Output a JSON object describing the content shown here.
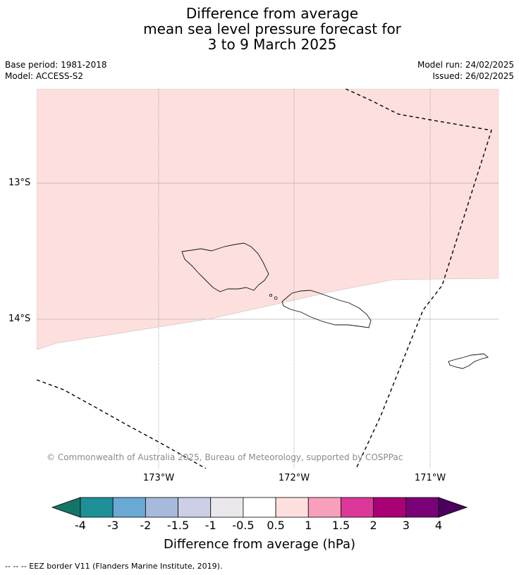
{
  "title": {
    "line1": "Difference from average",
    "line2": "mean sea level pressure forecast for",
    "line3": "3 to 9 March 2025"
  },
  "meta": {
    "base_period": "Base period: 1981-2018",
    "model": "Model: ACCESS-S2",
    "model_run": "Model run: 24/02/2025",
    "issued": "Issued: 26/02/2025"
  },
  "map": {
    "lat_labels": [
      "13°S",
      "14°S"
    ],
    "lon_labels": [
      "173°W",
      "172°W",
      "171°W"
    ],
    "shading_color": "#fde0de",
    "shading_category": "0.5 to 1",
    "copyright": "© Commonwealth of Australia 2025, Bureau of Meteorology, supported by COSPPac"
  },
  "colorbar": {
    "title": "Difference from average (hPa)",
    "tick_labels": [
      "-4",
      "-3",
      "-2",
      "-1.5",
      "-1",
      "-0.5",
      "0.5",
      "1",
      "1.5",
      "2",
      "3",
      "4"
    ],
    "colors": [
      "#137567",
      "#1d9097",
      "#69a9d3",
      "#a6badb",
      "#cdcfe6",
      "#ebe8ec",
      "#ffffff",
      "#fde0de",
      "#f8a0bb",
      "#dc3899",
      "#aa0075",
      "#7a0078",
      "#4b005e"
    ]
  },
  "footer": "-- -- -- EEZ border V11 (Flanders Marine Institute, 2019)."
}
